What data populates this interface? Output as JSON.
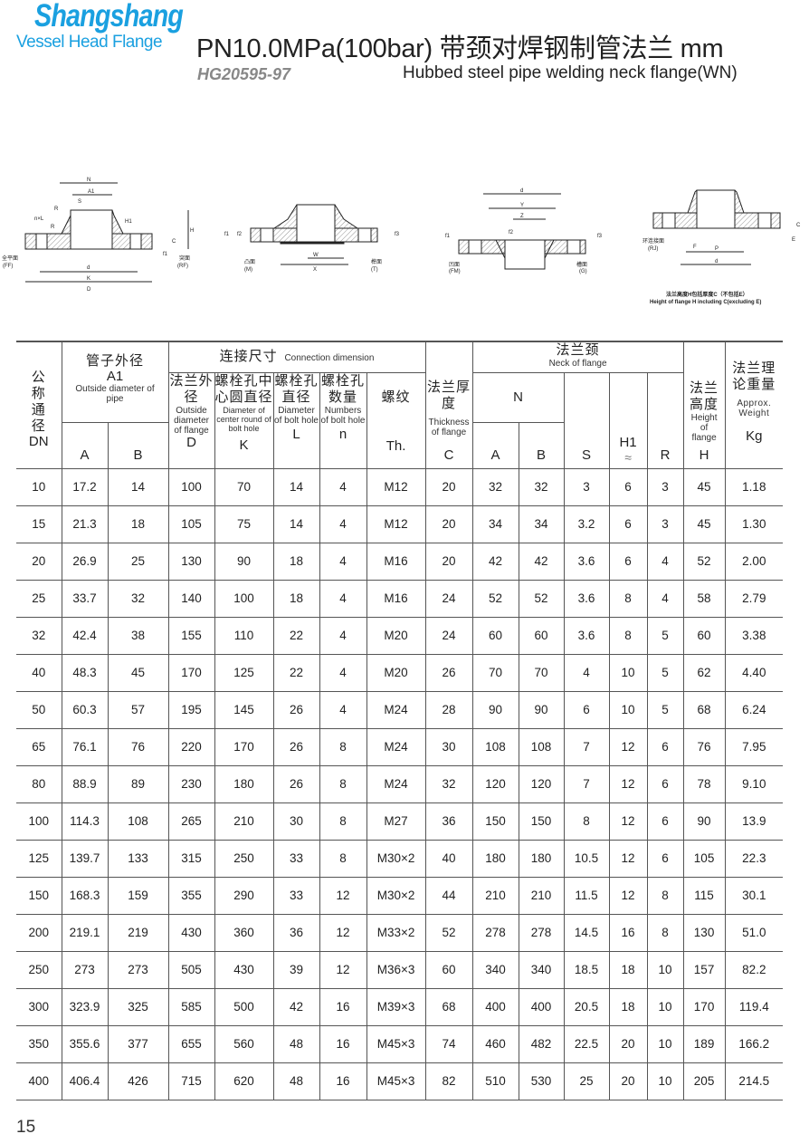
{
  "header": {
    "brand": "Shangshang",
    "brand_sub": "Vessel Head Flange",
    "title": "PN10.0MPa(100bar) 带颈对焊钢制管法兰  mm",
    "standard_code": "HG20595-97",
    "english_title": "Hubbed steel pipe welding neck flange(WN)",
    "brand_color": "#1aa0e0"
  },
  "drawings": {
    "d1": {
      "labels": [
        "N",
        "A1",
        "S",
        "R",
        "n×L",
        "R",
        "H1",
        "H",
        "C",
        "f1",
        "d",
        "K",
        "D"
      ],
      "ff": "全平面",
      "ff_en": "(FF)",
      "rf": "突面",
      "rf_en": "(RF)"
    },
    "d2": {
      "labels": [
        "f1",
        "f2",
        "W",
        "X",
        "f3"
      ],
      "m": "凸面",
      "m_en": "(M)",
      "t": "榫面",
      "t_en": "(T)"
    },
    "d3": {
      "labels": [
        "d",
        "Y",
        "Z",
        "f1",
        "f2",
        "f3"
      ],
      "fm": "凹面",
      "fm_en": "(FM)",
      "g": "槽面",
      "g_en": "(G)"
    },
    "d4": {
      "labels": [
        "E",
        "F",
        "P",
        "d",
        "C"
      ],
      "rj": "环连接面",
      "rj_en": "(RJ)",
      "note_cn": "法兰高度H包括厚度C（不包括E）",
      "note_en": "Height of flange H including C(excluding E)"
    }
  },
  "table": {
    "h": {
      "dn_cn": "公称通径",
      "dn": "DN",
      "pipe_cn": "管子外径",
      "pipe_sym": "A1",
      "pipe_en": "Outside diameter of pipe",
      "conn_cn": "连接尺寸",
      "conn_en": "Connection dimension",
      "d_cn": "法兰外径",
      "d_en": "Outside diameter of flange",
      "d_sym": "D",
      "k_cn": "螺栓孔中心圆直径",
      "k_en": "Diameter of center round of bolt hole",
      "k_sym": "K",
      "l_cn": "螺栓孔直径",
      "l_en": "Diameter of bolt hole",
      "l_sym": "L",
      "n_cn": "螺栓孔数量",
      "n_en": "Numbers of bolt hole",
      "n_sym": "n",
      "th_cn": "螺纹",
      "th_sym": "Th.",
      "c_cn": "法兰厚度",
      "c_en": "Thickness of flange",
      "c_sym": "C",
      "neck_cn": "法兰颈",
      "neck_en": "Neck of flange",
      "N": "N",
      "a": "A",
      "b": "B",
      "s": "S",
      "h1": "H1",
      "approx": "≈",
      "r": "R",
      "h_cn": "法兰高度",
      "h_en": "Height of flange",
      "h_sym": "H",
      "w_cn": "法兰理论重量",
      "w_en": "Approx. Weight",
      "w_sym": "Kg"
    },
    "rows": [
      [
        "10",
        "17.2",
        "14",
        "100",
        "70",
        "14",
        "4",
        "M12",
        "20",
        "32",
        "32",
        "3",
        "6",
        "3",
        "45",
        "1.18"
      ],
      [
        "15",
        "21.3",
        "18",
        "105",
        "75",
        "14",
        "4",
        "M12",
        "20",
        "34",
        "34",
        "3.2",
        "6",
        "3",
        "45",
        "1.30"
      ],
      [
        "20",
        "26.9",
        "25",
        "130",
        "90",
        "18",
        "4",
        "M16",
        "20",
        "42",
        "42",
        "3.6",
        "6",
        "4",
        "52",
        "2.00"
      ],
      [
        "25",
        "33.7",
        "32",
        "140",
        "100",
        "18",
        "4",
        "M16",
        "24",
        "52",
        "52",
        "3.6",
        "8",
        "4",
        "58",
        "2.79"
      ],
      [
        "32",
        "42.4",
        "38",
        "155",
        "110",
        "22",
        "4",
        "M20",
        "24",
        "60",
        "60",
        "3.6",
        "8",
        "5",
        "60",
        "3.38"
      ],
      [
        "40",
        "48.3",
        "45",
        "170",
        "125",
        "22",
        "4",
        "M20",
        "26",
        "70",
        "70",
        "4",
        "10",
        "5",
        "62",
        "4.40"
      ],
      [
        "50",
        "60.3",
        "57",
        "195",
        "145",
        "26",
        "4",
        "M24",
        "28",
        "90",
        "90",
        "6",
        "10",
        "5",
        "68",
        "6.24"
      ],
      [
        "65",
        "76.1",
        "76",
        "220",
        "170",
        "26",
        "8",
        "M24",
        "30",
        "108",
        "108",
        "7",
        "12",
        "6",
        "76",
        "7.95"
      ],
      [
        "80",
        "88.9",
        "89",
        "230",
        "180",
        "26",
        "8",
        "M24",
        "32",
        "120",
        "120",
        "7",
        "12",
        "6",
        "78",
        "9.10"
      ],
      [
        "100",
        "114.3",
        "108",
        "265",
        "210",
        "30",
        "8",
        "M27",
        "36",
        "150",
        "150",
        "8",
        "12",
        "6",
        "90",
        "13.9"
      ],
      [
        "125",
        "139.7",
        "133",
        "315",
        "250",
        "33",
        "8",
        "M30×2",
        "40",
        "180",
        "180",
        "10.5",
        "12",
        "6",
        "105",
        "22.3"
      ],
      [
        "150",
        "168.3",
        "159",
        "355",
        "290",
        "33",
        "12",
        "M30×2",
        "44",
        "210",
        "210",
        "11.5",
        "12",
        "8",
        "115",
        "30.1"
      ],
      [
        "200",
        "219.1",
        "219",
        "430",
        "360",
        "36",
        "12",
        "M33×2",
        "52",
        "278",
        "278",
        "14.5",
        "16",
        "8",
        "130",
        "51.0"
      ],
      [
        "250",
        "273",
        "273",
        "505",
        "430",
        "39",
        "12",
        "M36×3",
        "60",
        "340",
        "340",
        "18.5",
        "18",
        "10",
        "157",
        "82.2"
      ],
      [
        "300",
        "323.9",
        "325",
        "585",
        "500",
        "42",
        "16",
        "M39×3",
        "68",
        "400",
        "400",
        "20.5",
        "18",
        "10",
        "170",
        "119.4"
      ],
      [
        "350",
        "355.6",
        "377",
        "655",
        "560",
        "48",
        "16",
        "M45×3",
        "74",
        "460",
        "482",
        "22.5",
        "20",
        "10",
        "189",
        "166.2"
      ],
      [
        "400",
        "406.4",
        "426",
        "715",
        "620",
        "48",
        "16",
        "M45×3",
        "82",
        "510",
        "530",
        "25",
        "20",
        "10",
        "205",
        "214.5"
      ]
    ]
  },
  "footer": {
    "page_number": "15"
  }
}
